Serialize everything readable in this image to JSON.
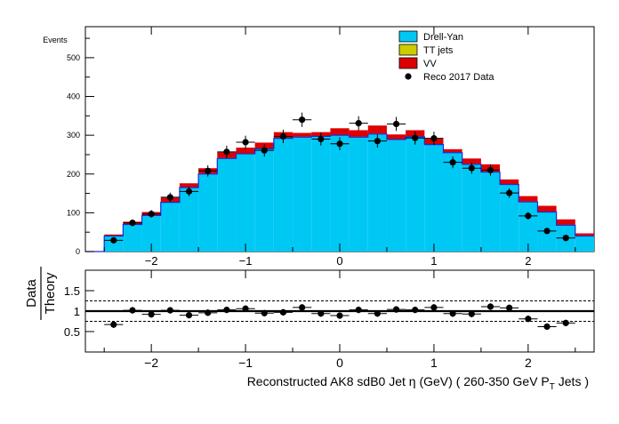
{
  "chart_data": [
    {
      "type": "histogram",
      "stacked": true,
      "ylabel": "Events",
      "xlim": [
        -2.7,
        2.7
      ],
      "ylim": [
        0,
        580
      ],
      "yticks": [
        0,
        100,
        200,
        300,
        400,
        500
      ],
      "xticks": [
        -2,
        -1,
        0,
        1,
        2
      ],
      "bin_edges": [
        -2.7,
        -2.5,
        -2.3,
        -2.1,
        -1.9,
        -1.7,
        -1.5,
        -1.3,
        -1.1,
        -0.9,
        -0.7,
        -0.5,
        -0.3,
        -0.1,
        0.1,
        0.3,
        0.5,
        0.7,
        0.9,
        1.1,
        1.3,
        1.5,
        1.7,
        1.9,
        2.1,
        2.3,
        2.5,
        2.7
      ],
      "legend_position": "top-right",
      "series": [
        {
          "name": "Drell-Yan",
          "kind": "fill",
          "color": "#00c8f5",
          "values": [
            0,
            40,
            70,
            93,
            127,
            165,
            200,
            240,
            252,
            265,
            292,
            295,
            297,
            300,
            295,
            303,
            289,
            296,
            276,
            255,
            225,
            205,
            173,
            128,
            102,
            68,
            40
          ]
        },
        {
          "name": "TT jets",
          "kind": "fill",
          "color": "#cccc00",
          "values": [
            0,
            1,
            1,
            1,
            1,
            1,
            1,
            1,
            1,
            1,
            1,
            1,
            1,
            1,
            1,
            1,
            1,
            1,
            1,
            1,
            1,
            1,
            1,
            1,
            1,
            1,
            1
          ]
        },
        {
          "name": "VV",
          "kind": "fill",
          "color": "#dd0000",
          "values": [
            0,
            3,
            6,
            8,
            11,
            10,
            14,
            15,
            15,
            15,
            15,
            10,
            10,
            17,
            17,
            21,
            12,
            16,
            14,
            8,
            14,
            19,
            12,
            14,
            15,
            14,
            6
          ]
        },
        {
          "name": "Reco 2017 Data",
          "kind": "points",
          "color": "#000000",
          "x": [
            -2.4,
            -2.2,
            -2.0,
            -1.8,
            -1.6,
            -1.4,
            -1.2,
            -1.0,
            -0.8,
            -0.6,
            -0.4,
            -0.2,
            0.0,
            0.2,
            0.4,
            0.6,
            0.8,
            1.0,
            1.2,
            1.4,
            1.6,
            1.8,
            2.0,
            2.2,
            2.4
          ],
          "y": [
            29,
            74,
            97,
            140,
            155,
            208,
            257,
            282,
            261,
            297,
            340,
            290,
            278,
            331,
            285,
            329,
            293,
            292,
            230,
            215,
            210,
            151,
            92,
            53,
            35
          ]
        }
      ]
    },
    {
      "type": "ratio",
      "ylabel_numerator": "Data",
      "ylabel_denominator": "Theory",
      "xlabel": "Reconstructed AK8 sdB0 Jet η (GeV) ( 260-350 GeV P",
      "xlabel_sub": "T",
      "xlabel_tail": " Jets  )",
      "xlim": [
        -2.7,
        2.7
      ],
      "ylim": [
        0,
        2
      ],
      "yticks": [
        0.5,
        1,
        1.5
      ],
      "xticks": [
        -2,
        -1,
        0,
        1,
        2
      ],
      "reference_lines": [
        0.75,
        1.0,
        1.25
      ],
      "x": [
        -2.4,
        -2.2,
        -2.0,
        -1.8,
        -1.6,
        -1.4,
        -1.2,
        -1.0,
        -0.8,
        -0.6,
        -0.4,
        -0.2,
        0.0,
        0.2,
        0.4,
        0.6,
        0.8,
        1.0,
        1.2,
        1.4,
        1.6,
        1.8,
        2.0,
        2.2,
        2.4
      ],
      "values": [
        0.67,
        1.02,
        0.92,
        1.02,
        0.9,
        0.96,
        1.03,
        1.06,
        0.95,
        0.97,
        1.09,
        0.94,
        0.89,
        1.03,
        0.94,
        1.04,
        1.03,
        1.09,
        0.94,
        0.93,
        1.11,
        1.08,
        0.81,
        0.62,
        0.71
      ]
    }
  ]
}
